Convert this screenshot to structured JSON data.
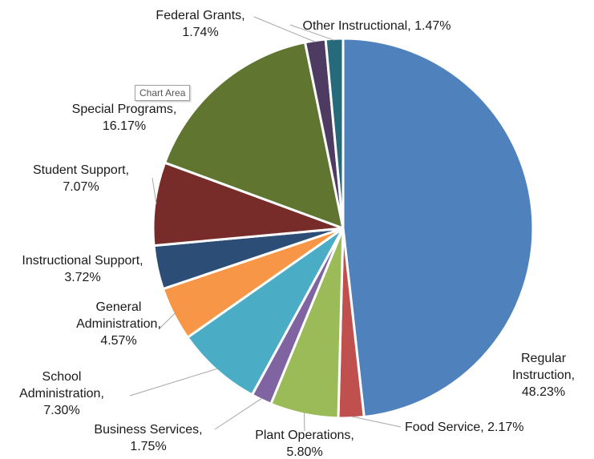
{
  "tooltip": "Chart Area",
  "chart_data": {
    "type": "pie",
    "slices": [
      {
        "name": "Regular Instruction",
        "label_lines": [
          "Regular",
          "Instruction,",
          "48.23%"
        ],
        "value": 48.23,
        "color": "#4f81bd"
      },
      {
        "name": "Food Service",
        "label_lines": [
          "Food Service, 2.17%"
        ],
        "value": 2.17,
        "color": "#c0504d"
      },
      {
        "name": "Plant Operations",
        "label_lines": [
          "Plant Operations,",
          "5.80%"
        ],
        "value": 5.8,
        "color": "#9bbb59"
      },
      {
        "name": "Business Services",
        "label_lines": [
          "Business Services,",
          "1.75%"
        ],
        "value": 1.75,
        "color": "#8064a2"
      },
      {
        "name": "School Administration",
        "label_lines": [
          "School",
          "Administration,",
          "7.30%"
        ],
        "value": 7.3,
        "color": "#4bacc6"
      },
      {
        "name": "General Administration",
        "label_lines": [
          "General",
          "Administration,",
          "4.57%"
        ],
        "value": 4.57,
        "color": "#f79646"
      },
      {
        "name": "Instructional Support",
        "label_lines": [
          "Instructional Support,",
          "3.72%"
        ],
        "value": 3.72,
        "color": "#2c4d75"
      },
      {
        "name": "Student Support",
        "label_lines": [
          "Student Support,",
          "7.07%"
        ],
        "value": 7.07,
        "color": "#772c2a"
      },
      {
        "name": "Special Programs",
        "label_lines": [
          "Special Programs,",
          "16.17%"
        ],
        "value": 16.17,
        "color": "#5f7530"
      },
      {
        "name": "Federal Grants",
        "label_lines": [
          "Federal Grants,",
          "1.74%"
        ],
        "value": 1.74,
        "color": "#4d3b62"
      },
      {
        "name": "Other Instructional",
        "label_lines": [
          "Other Instructional, 1.47%"
        ],
        "value": 1.47,
        "color": "#276a7c"
      }
    ]
  }
}
